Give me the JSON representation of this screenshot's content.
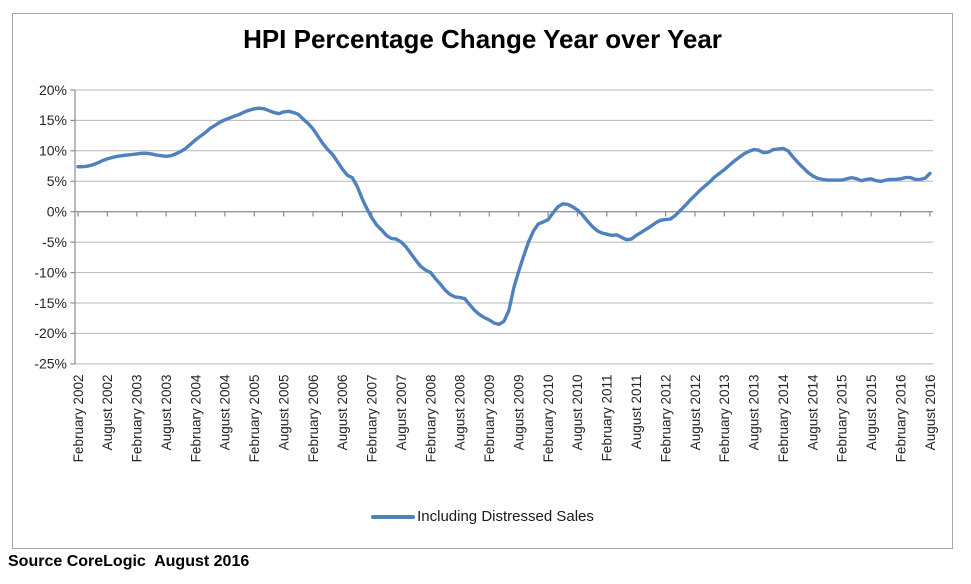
{
  "chart_data": {
    "type": "line",
    "title": "HPI Percentage Change Year over Year",
    "grid": true,
    "legend_position": "bottom",
    "ylim": [
      -25,
      20
    ],
    "y_tick_step": 5,
    "y_tick_labels": [
      "20%",
      "15%",
      "10%",
      "5%",
      "0%",
      "-5%",
      "-10%",
      "-15%",
      "-20%",
      "-25%"
    ],
    "x_frequency": "monthly",
    "x_range": "February 2002 - August 2016",
    "x_tick_labels": [
      "February 2002",
      "August 2002",
      "February 2003",
      "August 2003",
      "February 2004",
      "August 2004",
      "February 2005",
      "August 2005",
      "February 2006",
      "August 2006",
      "February 2007",
      "August 2007",
      "February 2008",
      "August 2008",
      "February 2009",
      "August 2009",
      "February 2010",
      "August 2010",
      "February 2011",
      "August 2011",
      "February 2012",
      "August 2012",
      "February 2013",
      "August 2013",
      "February 2014",
      "August 2014",
      "February 2015",
      "August 2015",
      "February 2016",
      "August 2016"
    ],
    "series": [
      {
        "name": "Including Distressed Sales",
        "color": "#4F81BD",
        "values": [
          7.4,
          7.4,
          7.5,
          7.7,
          8.0,
          8.4,
          8.7,
          8.9,
          9.1,
          9.2,
          9.3,
          9.4,
          9.5,
          9.6,
          9.6,
          9.5,
          9.3,
          9.2,
          9.1,
          9.2,
          9.5,
          9.9,
          10.4,
          11.1,
          11.8,
          12.4,
          13.0,
          13.7,
          14.2,
          14.7,
          15.1,
          15.4,
          15.7,
          16.0,
          16.4,
          16.7,
          16.9,
          17.0,
          16.9,
          16.6,
          16.3,
          16.1,
          16.4,
          16.5,
          16.3,
          16.0,
          15.2,
          14.5,
          13.6,
          12.4,
          11.2,
          10.2,
          9.4,
          8.2,
          7.0,
          6.0,
          5.6,
          4.2,
          2.2,
          0.5,
          -1.0,
          -2.2,
          -3.0,
          -3.9,
          -4.4,
          -4.5,
          -5.0,
          -5.8,
          -6.9,
          -8.0,
          -9.0,
          -9.6,
          -10.0,
          -11.0,
          -11.9,
          -12.9,
          -13.6,
          -14.0,
          -14.1,
          -14.3,
          -15.3,
          -16.2,
          -16.9,
          -17.4,
          -17.8,
          -18.3,
          -18.5,
          -18.0,
          -16.2,
          -12.5,
          -9.8,
          -7.3,
          -5.0,
          -3.2,
          -2.0,
          -1.7,
          -1.3,
          -0.2,
          0.8,
          1.3,
          1.2,
          0.8,
          0.3,
          -0.5,
          -1.5,
          -2.4,
          -3.1,
          -3.5,
          -3.7,
          -3.9,
          -3.8,
          -4.2,
          -4.6,
          -4.5,
          -3.9,
          -3.4,
          -2.9,
          -2.4,
          -1.8,
          -1.4,
          -1.3,
          -1.2,
          -0.6,
          0.2,
          1.0,
          1.9,
          2.7,
          3.5,
          4.2,
          4.9,
          5.7,
          6.3,
          6.9,
          7.6,
          8.3,
          8.9,
          9.5,
          9.9,
          10.2,
          10.1,
          9.7,
          9.8,
          10.2,
          10.3,
          10.4,
          10.0,
          9.0,
          8.1,
          7.3,
          6.5,
          5.9,
          5.5,
          5.3,
          5.2,
          5.2,
          5.2,
          5.2,
          5.4,
          5.6,
          5.4,
          5.1,
          5.3,
          5.4,
          5.1,
          5.0,
          5.2,
          5.3,
          5.3,
          5.4,
          5.6,
          5.6,
          5.3,
          5.3,
          5.5,
          6.3
        ]
      }
    ]
  },
  "source_note": "Source CoreLogic  August 2016",
  "colors": {
    "series_line": "#4F81BD",
    "gridline": "#b7b7b7",
    "axis": "#8c8c8c",
    "label_text": "#262626",
    "title_text": "#000000"
  }
}
